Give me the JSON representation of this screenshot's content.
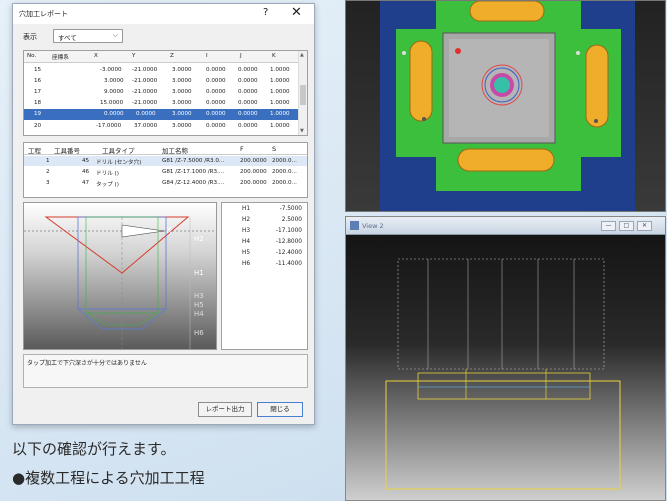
{
  "dialog": {
    "title": "穴加工レポート",
    "help": "?",
    "close": "✕",
    "filter_label": "表示",
    "filter_value": "すべて",
    "holes": {
      "columns": [
        "No.",
        "座標系",
        "X",
        "Y",
        "Z",
        "I",
        "J",
        "K"
      ],
      "rows": [
        [
          "15",
          "",
          "-3.0000",
          "-21.0000",
          "3.0000",
          "0.0000",
          "0.0000",
          "1.0000"
        ],
        [
          "16",
          "",
          "3.0000",
          "-21.0000",
          "3.0000",
          "0.0000",
          "0.0000",
          "1.0000"
        ],
        [
          "17",
          "",
          "9.0000",
          "-21.0000",
          "3.0000",
          "0.0000",
          "0.0000",
          "1.0000"
        ],
        [
          "18",
          "",
          "15.0000",
          "-21.0000",
          "3.0000",
          "0.0000",
          "0.0000",
          "1.0000"
        ],
        [
          "19",
          "",
          "0.0000",
          "0.0000",
          "3.0000",
          "0.0000",
          "0.0000",
          "1.0000"
        ],
        [
          "20",
          "",
          "-17.0000",
          "37.0000",
          "3.0000",
          "0.0000",
          "0.0000",
          "1.0000"
        ]
      ]
    },
    "processes": {
      "columns": [
        "工程",
        "工具番号",
        "工具タイプ",
        "加工名称",
        "F",
        "S"
      ],
      "rows": [
        [
          "1",
          "45",
          "ドリル (センタ穴)",
          "G81 /Z-7.5000 /R3.0...",
          "200.0000",
          "2000.0..."
        ],
        [
          "2",
          "46",
          "ドリル ()",
          "G81 /Z-17.1000 /R3....",
          "200.0000",
          "2000.0..."
        ],
        [
          "3",
          "47",
          "タップ ()",
          "G84 /Z-12.4000 /R3....",
          "200.0000",
          "2000.0..."
        ]
      ]
    },
    "heights": [
      {
        "k": "H1",
        "v": "-7.5000"
      },
      {
        "k": "H2",
        "v": "2.5000"
      },
      {
        "k": "H3",
        "v": "-17.1000"
      },
      {
        "k": "H4",
        "v": "-12.8000"
      },
      {
        "k": "H5",
        "v": "-12.4000"
      },
      {
        "k": "H6",
        "v": "-11.4000"
      }
    ],
    "message": "タップ加工で下穴深さが十分ではありません",
    "report_button": "レポート出力",
    "close_button": "閉じる"
  },
  "viewport_labels": [
    "H2",
    "H1",
    "H3",
    "H5",
    "H4",
    "H6"
  ],
  "caption": {
    "line1": "以下の確認が行えます。",
    "line2": "●複数工程による穴加工工程"
  },
  "side_view": {
    "title": "View 2",
    "min": "—",
    "max": "□",
    "close": "✕"
  }
}
